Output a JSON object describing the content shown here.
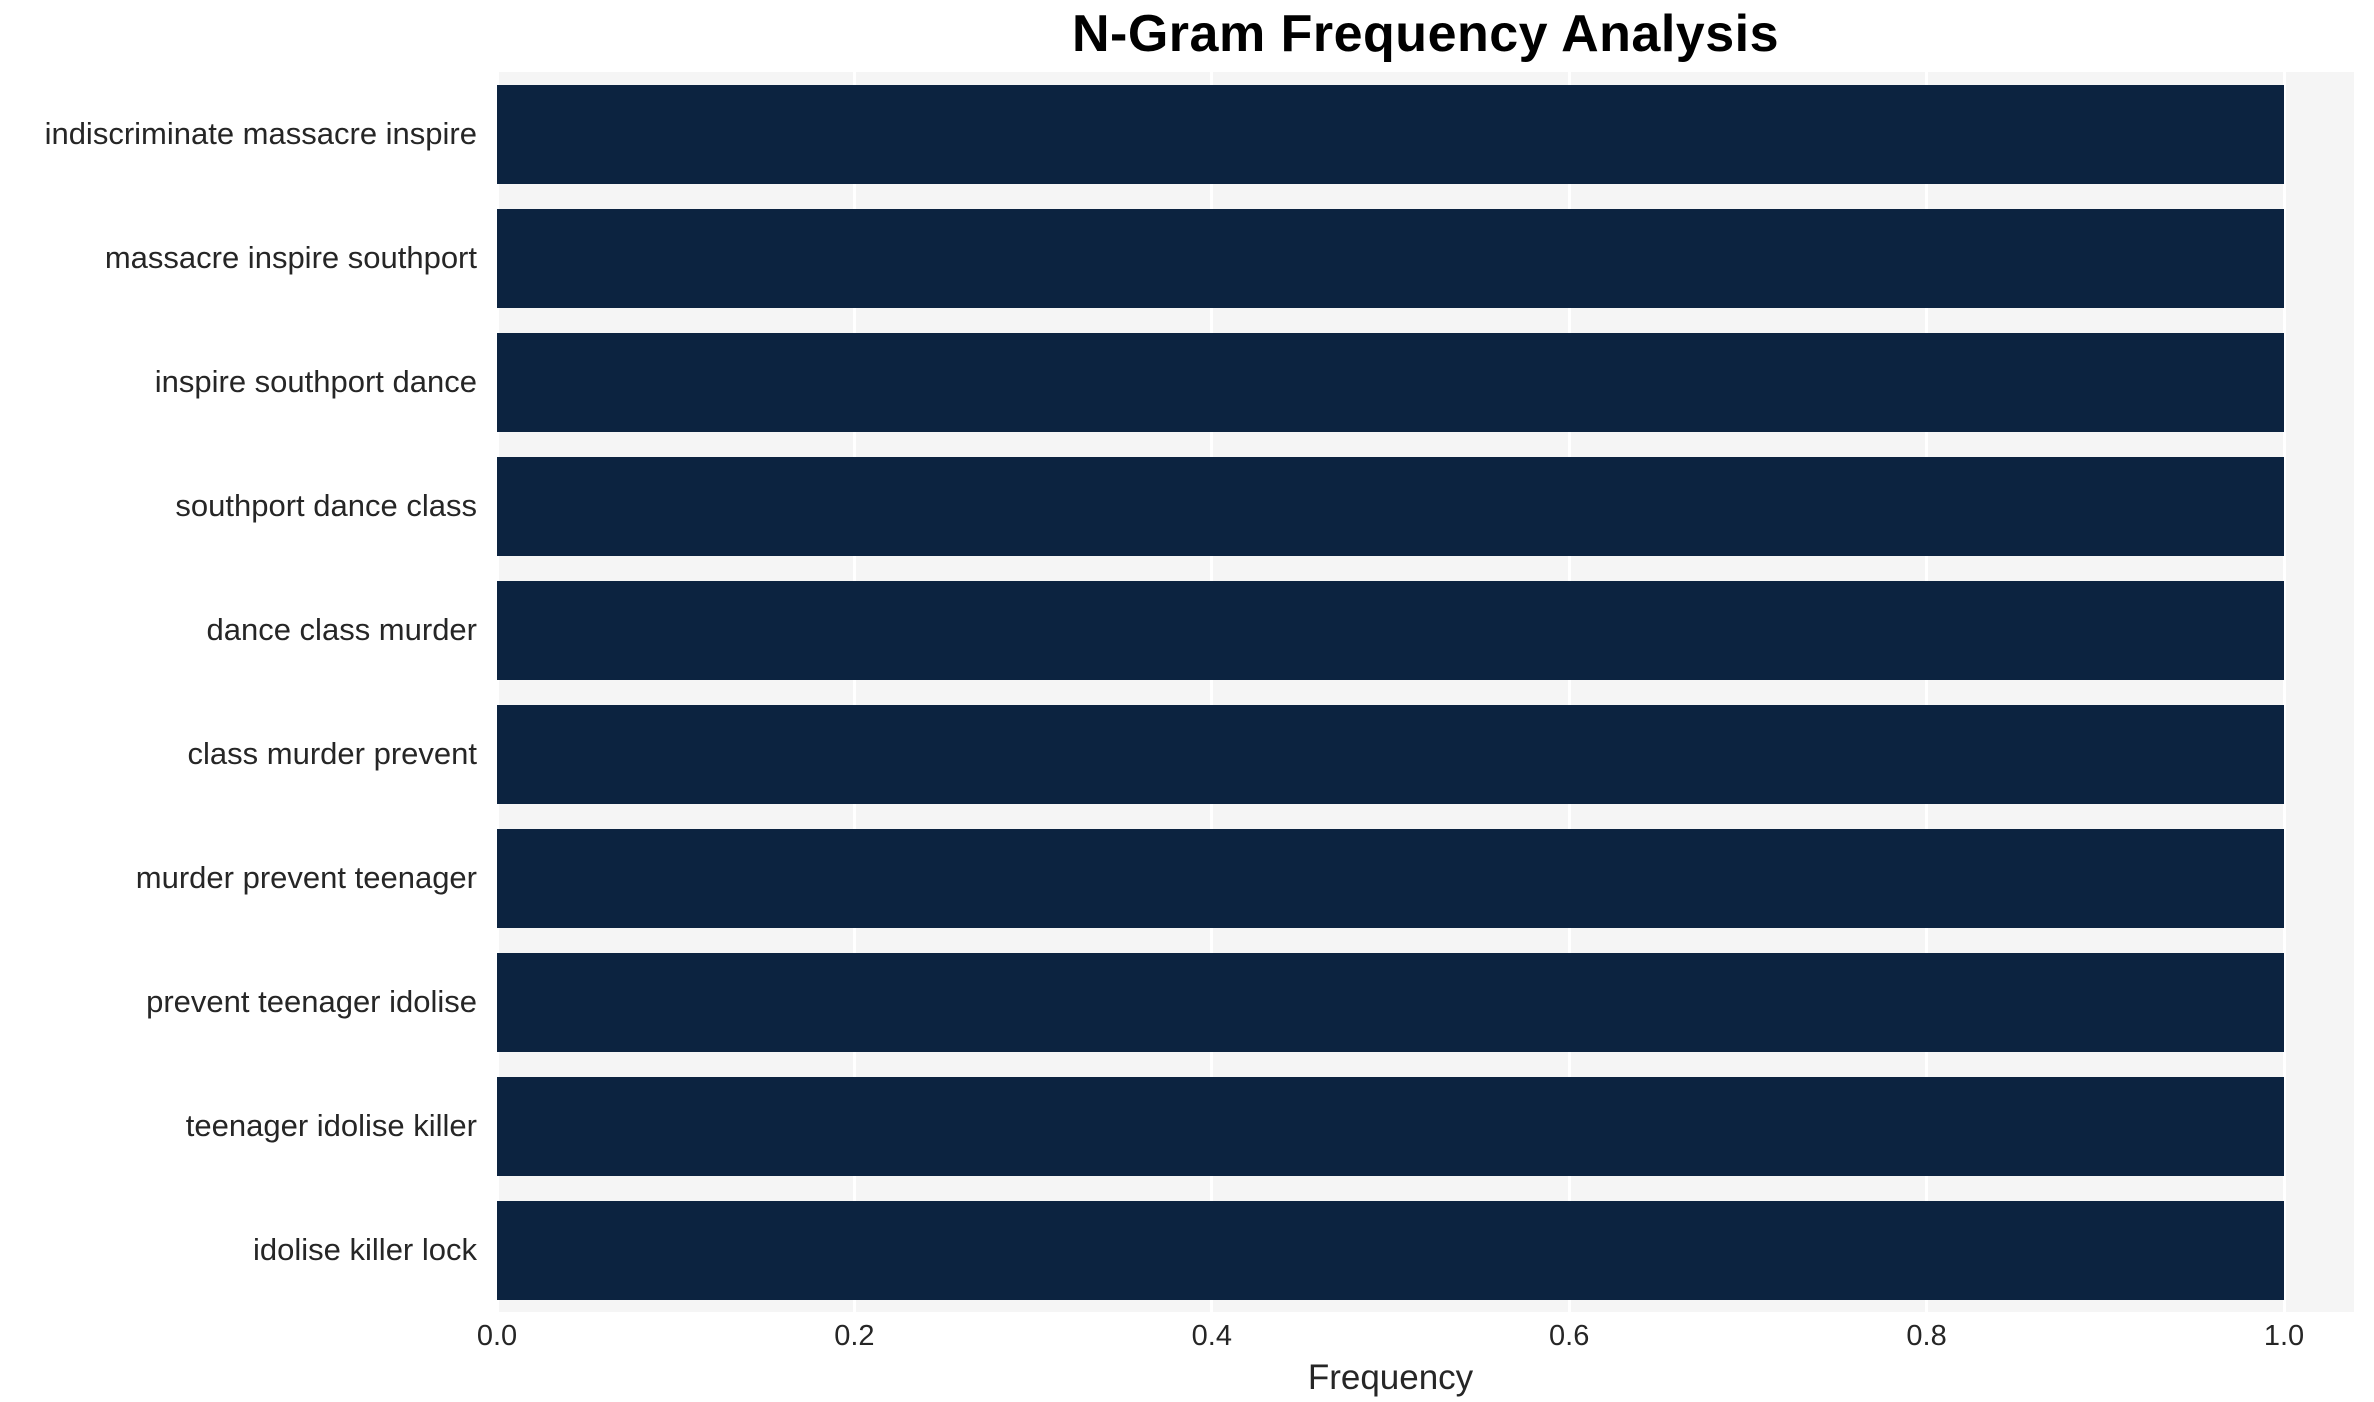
{
  "title": "N-Gram Frequency Analysis",
  "chart_data": {
    "type": "bar",
    "orientation": "horizontal",
    "title": "N-Gram Frequency Analysis",
    "categories": [
      "indiscriminate massacre inspire",
      "massacre inspire southport",
      "inspire southport dance",
      "southport dance class",
      "dance class murder",
      "class murder prevent",
      "murder prevent teenager",
      "prevent teenager idolise",
      "teenager idolise killer",
      "idolise killer lock"
    ],
    "values": [
      1.0,
      1.0,
      1.0,
      1.0,
      1.0,
      1.0,
      1.0,
      1.0,
      1.0,
      1.0
    ],
    "xlabel": "Frequency",
    "ylabel": "",
    "xlim": [
      0.0,
      1.0
    ],
    "xticks": [
      0.0,
      0.2,
      0.4,
      0.6,
      0.8,
      1.0
    ],
    "xtick_labels": [
      "0.0",
      "0.2",
      "0.4",
      "0.6",
      "0.8",
      "1.0"
    ],
    "grid": true,
    "legend": false,
    "colors": {
      "bar": "#0c2340",
      "plot_background": "#f5f5f5",
      "gridline": "#ffffff",
      "text": "#262626",
      "title": "#000000"
    }
  }
}
